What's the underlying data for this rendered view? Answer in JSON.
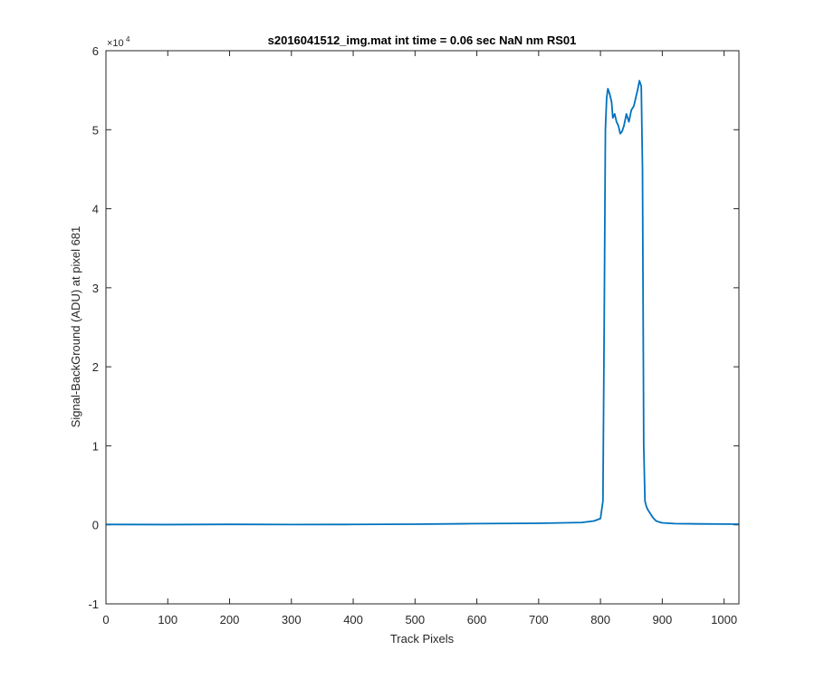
{
  "chart_data": {
    "type": "line",
    "title": "s2016041512_img.mat int time = 0.06 sec  NaN nm RS01",
    "xlabel": "Track Pixels",
    "ylabel": "Signal-BackGround (ADU) at pixel 681",
    "xlim": [
      0,
      1024
    ],
    "ylim": [
      -10000,
      60000
    ],
    "y_exponent_label": "×10",
    "y_exponent_power": "4",
    "x_ticks": [
      0,
      100,
      200,
      300,
      400,
      500,
      600,
      700,
      800,
      900,
      1000
    ],
    "x_tick_labels": [
      "0",
      "100",
      "200",
      "300",
      "400",
      "500",
      "600",
      "700",
      "800",
      "900",
      "1000"
    ],
    "y_ticks": [
      -10000,
      0,
      10000,
      20000,
      30000,
      40000,
      50000,
      60000
    ],
    "y_tick_labels": [
      "-1",
      "0",
      "1",
      "2",
      "3",
      "4",
      "5",
      "6"
    ],
    "grid": false,
    "line_color": "#0072BD",
    "series": [
      {
        "x": [
          0,
          100,
          200,
          300,
          400,
          500,
          600,
          700,
          770,
          790,
          800,
          804,
          806,
          808,
          810,
          812,
          815,
          818,
          820,
          823,
          826,
          829,
          832,
          835,
          838,
          842,
          846,
          850,
          854,
          857,
          860,
          863,
          866,
          868,
          870,
          872,
          874,
          876,
          880,
          885,
          890,
          895,
          900,
          920,
          960,
          1000,
          1024
        ],
        "y": [
          50,
          30,
          60,
          40,
          50,
          80,
          150,
          200,
          300,
          500,
          800,
          3000,
          25000,
          50000,
          54000,
          55200,
          54500,
          53500,
          51500,
          52000,
          51000,
          50500,
          49500,
          49800,
          50500,
          52000,
          51000,
          52500,
          53000,
          54000,
          55000,
          56200,
          55500,
          45000,
          10000,
          3000,
          2400,
          2000,
          1500,
          900,
          500,
          350,
          250,
          150,
          120,
          100,
          80
        ]
      }
    ]
  }
}
